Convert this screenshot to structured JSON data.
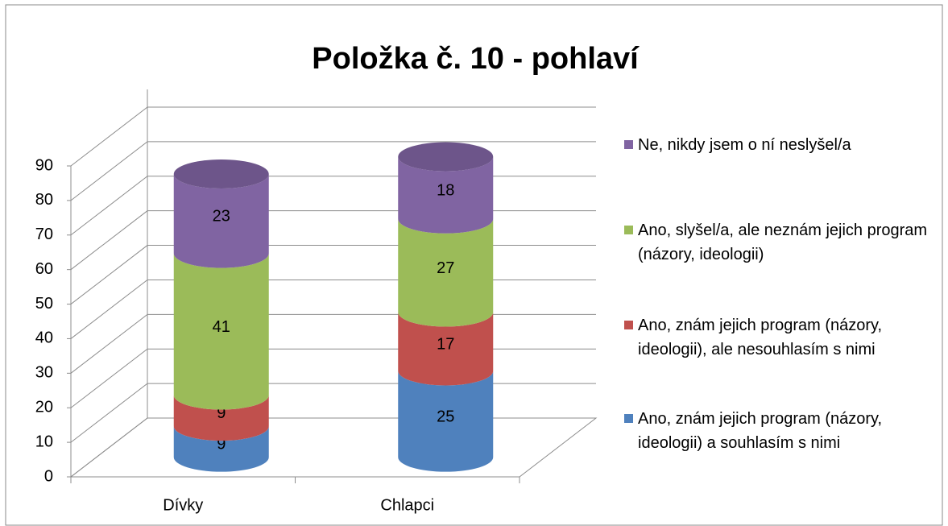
{
  "chart_data": {
    "type": "bar3d_stacked_cylinder",
    "title": "Položka č. 10 - pohlaví",
    "categories": [
      "Dívky",
      "Chlapci"
    ],
    "series": [
      {
        "name": "Ano, znám jejich program (názory, ideologii) a souhlasím s nimi",
        "color": "#4f81bd",
        "values": [
          9,
          25
        ]
      },
      {
        "name": "Ano, znám jejich program (názory, ideologii), ale nesouhlasím s nimi",
        "color": "#c0504d",
        "values": [
          9,
          17
        ]
      },
      {
        "name": "Ano, slyšel/a, ale neznám jejich program (názory, ideologii)",
        "color": "#9bbb59",
        "values": [
          41,
          27
        ]
      },
      {
        "name": "Ne, nikdy jsem o ní neslyšel/a",
        "color": "#8064a2",
        "values": [
          23,
          18
        ]
      }
    ],
    "ylim": [
      0,
      90
    ],
    "yticks": [
      0,
      10,
      20,
      30,
      40,
      50,
      60,
      70,
      80,
      90
    ],
    "grid": true,
    "legend": "right"
  }
}
